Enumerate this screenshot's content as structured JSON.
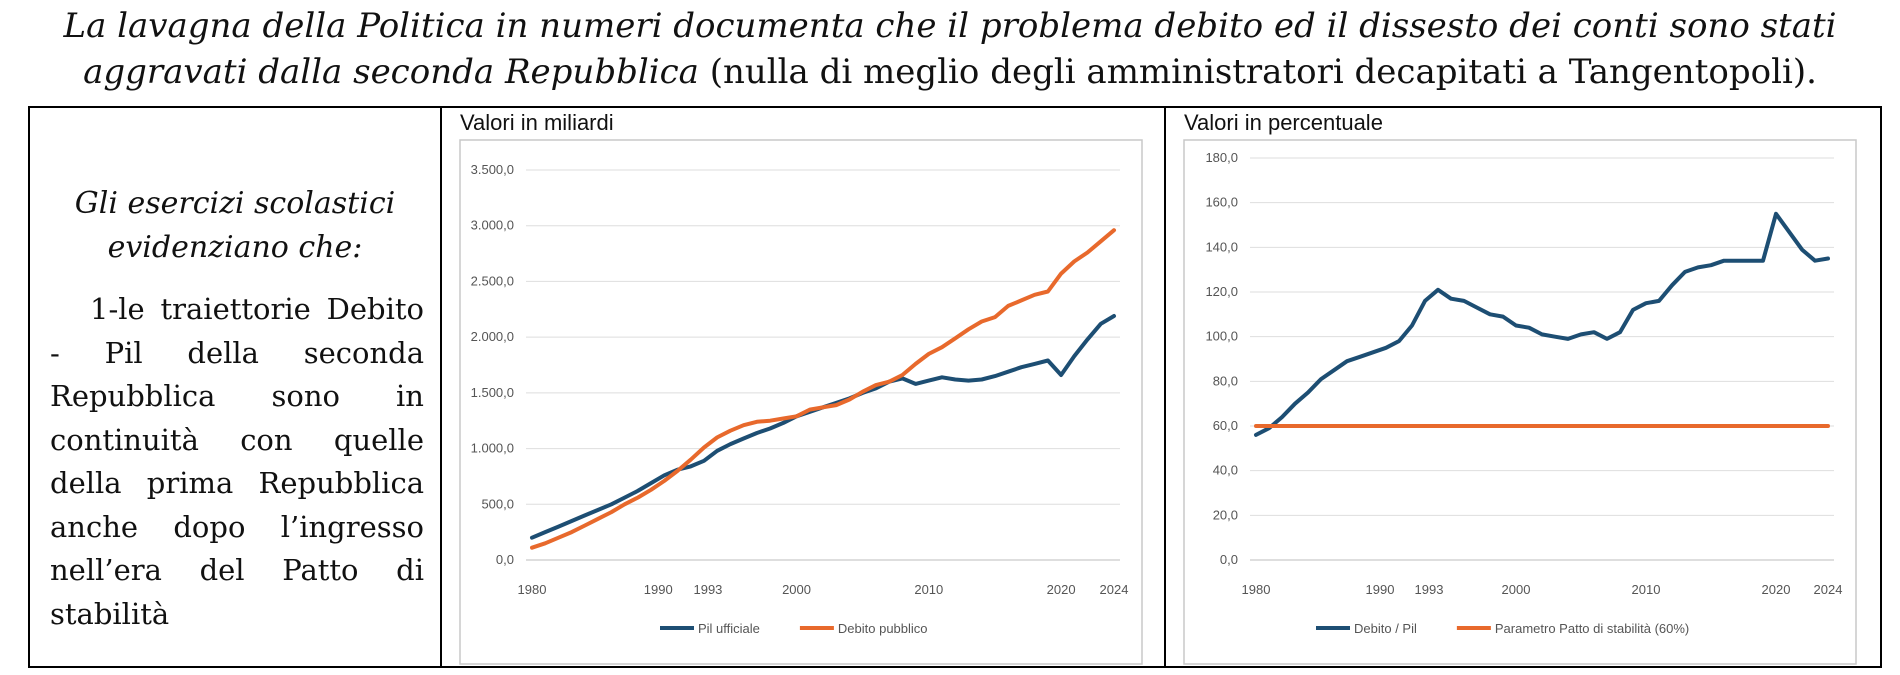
{
  "header": {
    "line1_italic": "La lavagna della Politica in numeri documenta che il problema debito ed il dissesto dei conti sono stati",
    "line2_italic": "aggravati dalla seconda Repubblica",
    "line2_normal": " (nulla di meglio degli amministratori decapitati a Tangentopoli)."
  },
  "left_panel": {
    "heading": "Gli esercizi scolastici evidenziano che:",
    "text": "1-le traiettorie Debito - Pil della seconda Repubblica sono in continuità con quelle della prima Repubblica anche dopo l’ingresso nell’era del Patto di stabilità"
  },
  "chart_data": [
    {
      "type": "line",
      "title": "Valori in miliardi",
      "x_ticks": [
        "1980",
        "1990",
        "1993",
        "2000",
        "2010",
        "2020",
        "2024"
      ],
      "y_ticks": [
        "0,0",
        "500,0",
        "1.000,0",
        "1.500,0",
        "2.000,0",
        "2.500,0",
        "3.000,0",
        "3.500,0"
      ],
      "ylim": [
        0,
        3500
      ],
      "xlim": [
        1980,
        2024
      ],
      "grid": true,
      "legend_position": "bottom",
      "x": [
        1980,
        1981,
        1982,
        1983,
        1984,
        1985,
        1986,
        1987,
        1988,
        1989,
        1990,
        1991,
        1992,
        1993,
        1994,
        1995,
        1996,
        1997,
        1998,
        1999,
        2000,
        2001,
        2002,
        2003,
        2004,
        2005,
        2006,
        2007,
        2008,
        2009,
        2010,
        2011,
        2012,
        2013,
        2014,
        2015,
        2016,
        2017,
        2018,
        2019,
        2020,
        2021,
        2022,
        2023,
        2024
      ],
      "series": [
        {
          "name": "Pil ufficiale",
          "color": "#1d4e73",
          "values": [
            200,
            250,
            300,
            350,
            400,
            450,
            500,
            560,
            620,
            690,
            760,
            810,
            840,
            890,
            980,
            1040,
            1090,
            1140,
            1180,
            1230,
            1290,
            1330,
            1370,
            1410,
            1450,
            1500,
            1540,
            1600,
            1630,
            1580,
            1610,
            1640,
            1620,
            1610,
            1620,
            1650,
            1690,
            1730,
            1760,
            1790,
            1660,
            1830,
            1980,
            2120,
            2190
          ]
        },
        {
          "name": "Debito pubblico",
          "color": "#e8692c",
          "values": [
            110,
            150,
            200,
            250,
            310,
            370,
            430,
            500,
            560,
            630,
            710,
            800,
            900,
            1010,
            1100,
            1160,
            1210,
            1240,
            1250,
            1270,
            1290,
            1350,
            1370,
            1390,
            1440,
            1510,
            1570,
            1600,
            1660,
            1760,
            1850,
            1910,
            1990,
            2070,
            2140,
            2180,
            2280,
            2330,
            2380,
            2410,
            2570,
            2680,
            2760,
            2860,
            2960
          ]
        }
      ]
    },
    {
      "type": "line",
      "title": "Valori in percentuale",
      "x_ticks": [
        "1980",
        "1990",
        "1993",
        "2000",
        "2010",
        "2020",
        "2024"
      ],
      "y_ticks": [
        "0,0",
        "20,0",
        "40,0",
        "60,0",
        "80,0",
        "100,0",
        "120,0",
        "140,0",
        "160,0",
        "180,0"
      ],
      "ylim": [
        0,
        180
      ],
      "xlim": [
        1980,
        2024
      ],
      "grid": true,
      "legend_position": "bottom",
      "x": [
        1980,
        1981,
        1982,
        1983,
        1984,
        1985,
        1986,
        1987,
        1988,
        1989,
        1990,
        1991,
        1992,
        1993,
        1994,
        1995,
        1996,
        1997,
        1998,
        1999,
        2000,
        2001,
        2002,
        2003,
        2004,
        2005,
        2006,
        2007,
        2008,
        2009,
        2010,
        2011,
        2012,
        2013,
        2014,
        2015,
        2016,
        2017,
        2018,
        2019,
        2020,
        2021,
        2022,
        2023,
        2024
      ],
      "series": [
        {
          "name": "Debito / Pil",
          "color": "#1d4e73",
          "values": [
            56,
            59,
            64,
            70,
            75,
            81,
            85,
            89,
            91,
            93,
            95,
            98,
            105,
            116,
            121,
            117,
            116,
            113,
            110,
            109,
            105,
            104,
            101,
            100,
            99,
            101,
            102,
            99,
            102,
            112,
            115,
            116,
            123,
            129,
            131,
            132,
            134,
            134,
            134,
            134,
            155,
            147,
            139,
            134,
            135
          ]
        },
        {
          "name": "Parametro Patto di stabilità (60%)",
          "color": "#e8692c",
          "values": [
            60,
            60,
            60,
            60,
            60,
            60,
            60,
            60,
            60,
            60,
            60,
            60,
            60,
            60,
            60,
            60,
            60,
            60,
            60,
            60,
            60,
            60,
            60,
            60,
            60,
            60,
            60,
            60,
            60,
            60,
            60,
            60,
            60,
            60,
            60,
            60,
            60,
            60,
            60,
            60,
            60,
            60,
            60,
            60,
            60
          ]
        }
      ]
    }
  ]
}
